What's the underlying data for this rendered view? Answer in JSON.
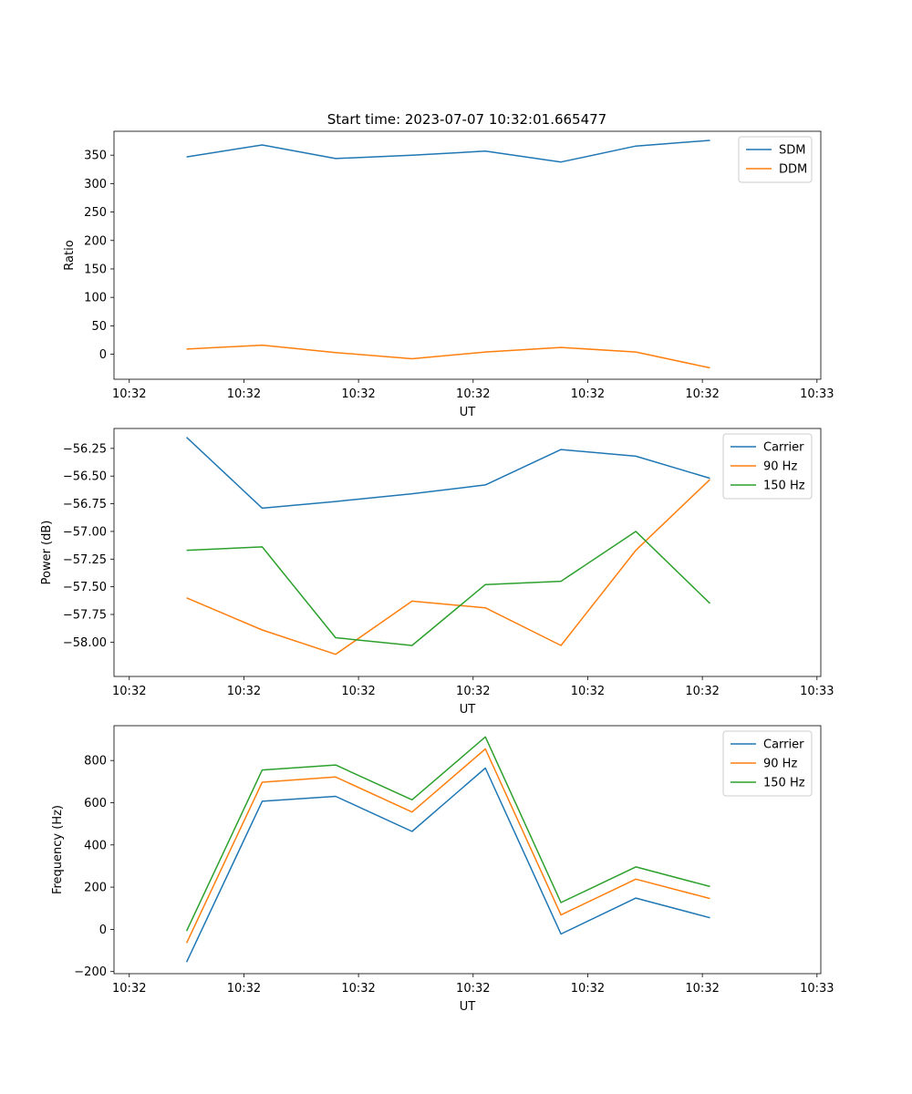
{
  "title": "Start time: 2023-07-07 10:32:01.665477",
  "colors": {
    "blue": "#1f77b4",
    "orange": "#ff7f0e",
    "green": "#2ca02c"
  },
  "chart_data": [
    {
      "type": "line",
      "xlabel": "UT",
      "ylabel": "Ratio",
      "ylim": [
        -44,
        392
      ],
      "yticks": [
        0,
        50,
        100,
        150,
        200,
        250,
        300,
        350
      ],
      "ytick_labels": [
        "0",
        "50",
        "100",
        "150",
        "200",
        "250",
        "300",
        "350"
      ],
      "xlim": [
        -0.2,
        9.05
      ],
      "xticks": [
        0,
        1.5,
        3,
        4.5,
        6,
        7.5,
        9
      ],
      "xtick_labels": [
        "10:32",
        "10:32",
        "10:32",
        "10:32",
        "10:32",
        "10:32",
        "10:33"
      ],
      "x": [
        0.75,
        1.74,
        2.7,
        3.7,
        4.66,
        5.65,
        6.63,
        7.6
      ],
      "legend_position": "top-right",
      "series": [
        {
          "name": "SDM",
          "color": "#1f77b4",
          "values": [
            347,
            368,
            344,
            350,
            357,
            338,
            366,
            376
          ]
        },
        {
          "name": "DDM",
          "color": "#ff7f0e",
          "values": [
            9,
            16,
            3,
            -8,
            4,
            12,
            4,
            -24
          ]
        }
      ]
    },
    {
      "type": "line",
      "xlabel": "UT",
      "ylabel": "Power (dB)",
      "ylim": [
        -58.31,
        -56.07
      ],
      "yticks": [
        -58.0,
        -57.75,
        -57.5,
        -57.25,
        -57.0,
        -56.75,
        -56.5,
        -56.25
      ],
      "ytick_labels": [
        "−58.00",
        "−57.75",
        "−57.50",
        "−57.25",
        "−57.00",
        "−56.75",
        "−56.50",
        "−56.25"
      ],
      "xlim": [
        -0.2,
        9.05
      ],
      "xticks": [
        0,
        1.5,
        3,
        4.5,
        6,
        7.5,
        9
      ],
      "xtick_labels": [
        "10:32",
        "10:32",
        "10:32",
        "10:32",
        "10:32",
        "10:32",
        "10:33"
      ],
      "x": [
        0.75,
        1.74,
        2.7,
        3.7,
        4.66,
        5.65,
        6.63,
        7.6
      ],
      "legend_position": "top-right",
      "series": [
        {
          "name": "Carrier",
          "color": "#1f77b4",
          "values": [
            -56.15,
            -56.79,
            -56.73,
            -56.66,
            -56.58,
            -56.26,
            -56.32,
            -56.52
          ]
        },
        {
          "name": "90 Hz",
          "color": "#ff7f0e",
          "values": [
            -57.6,
            -57.89,
            -58.11,
            -57.63,
            -57.69,
            -58.03,
            -57.17,
            -56.53
          ]
        },
        {
          "name": "150 Hz",
          "color": "#2ca02c",
          "values": [
            -57.17,
            -57.14,
            -57.96,
            -58.03,
            -57.48,
            -57.45,
            -57.0,
            -57.65
          ]
        }
      ]
    },
    {
      "type": "line",
      "xlabel": "UT",
      "ylabel": "Frequency (Hz)",
      "ylim": [
        -210,
        965
      ],
      "yticks": [
        -200,
        0,
        200,
        400,
        600,
        800
      ],
      "ytick_labels": [
        "−200",
        "0",
        "200",
        "400",
        "600",
        "800"
      ],
      "xlim": [
        -0.2,
        9.05
      ],
      "xticks": [
        0,
        1.5,
        3,
        4.5,
        6,
        7.5,
        9
      ],
      "xtick_labels": [
        "10:32",
        "10:32",
        "10:32",
        "10:32",
        "10:32",
        "10:32",
        "10:33"
      ],
      "x": [
        0.75,
        1.74,
        2.7,
        3.7,
        4.66,
        5.65,
        6.63,
        7.6
      ],
      "legend_position": "top-right",
      "series": [
        {
          "name": "Carrier",
          "color": "#1f77b4",
          "values": [
            -155,
            607,
            630,
            464,
            764,
            -22,
            148,
            55
          ]
        },
        {
          "name": "90 Hz",
          "color": "#ff7f0e",
          "values": [
            -65,
            697,
            722,
            556,
            855,
            68,
            238,
            146
          ]
        },
        {
          "name": "150 Hz",
          "color": "#2ca02c",
          "values": [
            -8,
            755,
            779,
            614,
            912,
            127,
            296,
            203
          ]
        }
      ]
    }
  ]
}
